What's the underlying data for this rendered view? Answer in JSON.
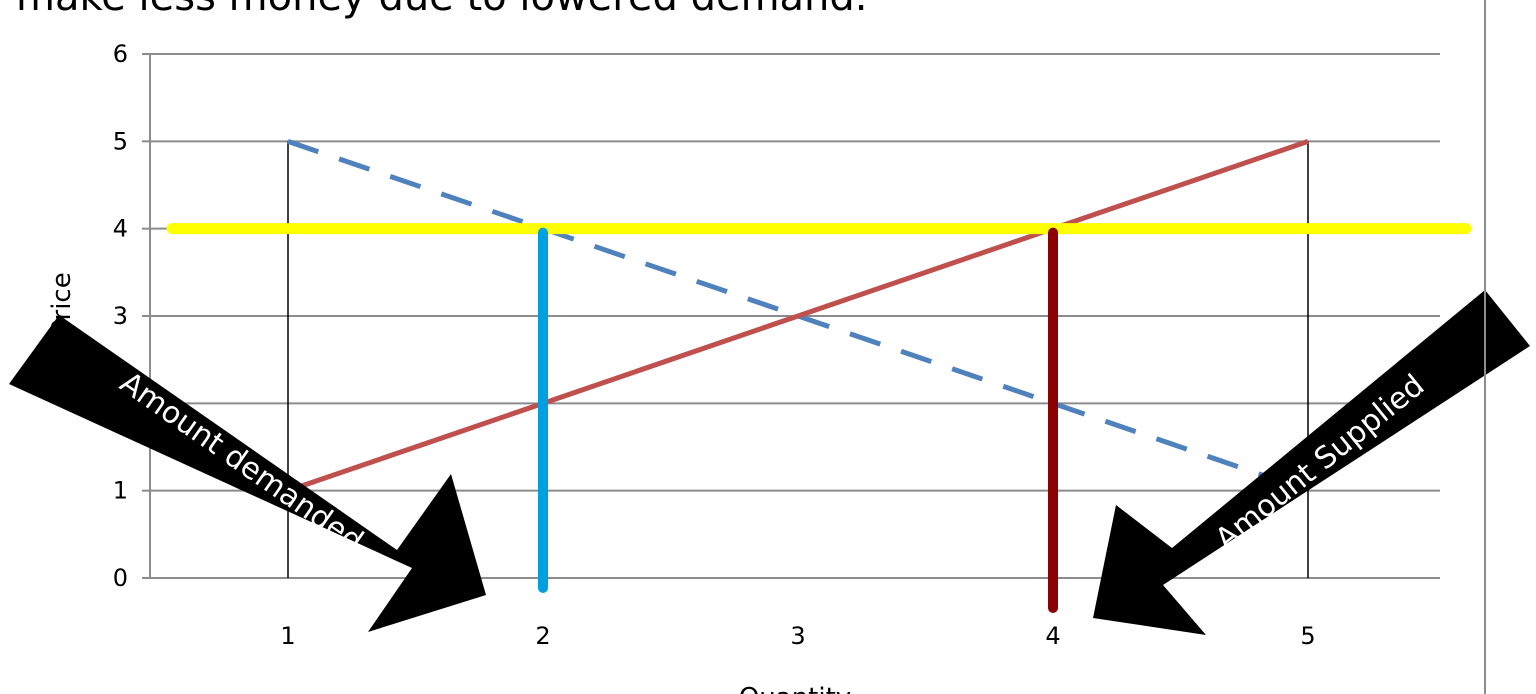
{
  "slide": {
    "text": "make less money due to lowered demand."
  },
  "chart_data": {
    "type": "line",
    "xlabel": "Quantity",
    "ylabel": "Price",
    "categories": [
      1,
      2,
      3,
      4,
      5
    ],
    "ylim": [
      0,
      6
    ],
    "y_ticks": [
      0,
      1,
      2,
      3,
      4,
      5,
      6
    ],
    "grid": "horizontal",
    "series": [
      {
        "name": "",
        "style": "dashed",
        "color": "#4f81bd",
        "values": [
          5,
          4,
          3,
          2,
          1
        ]
      },
      {
        "name": "",
        "style": "solid",
        "color": "#c0504d",
        "values": [
          1,
          2,
          3,
          4,
          5
        ]
      }
    ],
    "price_line": {
      "value": 4,
      "color": "#ffff00"
    },
    "quantity_markers": [
      {
        "x": 2,
        "color": "#00a0e0"
      },
      {
        "x": 4,
        "color": "#8b0000"
      }
    ],
    "annotations": [
      {
        "text": "Amount demanded",
        "points_to": 2
      },
      {
        "text": "Amount Supplied",
        "points_to": 4
      }
    ]
  }
}
